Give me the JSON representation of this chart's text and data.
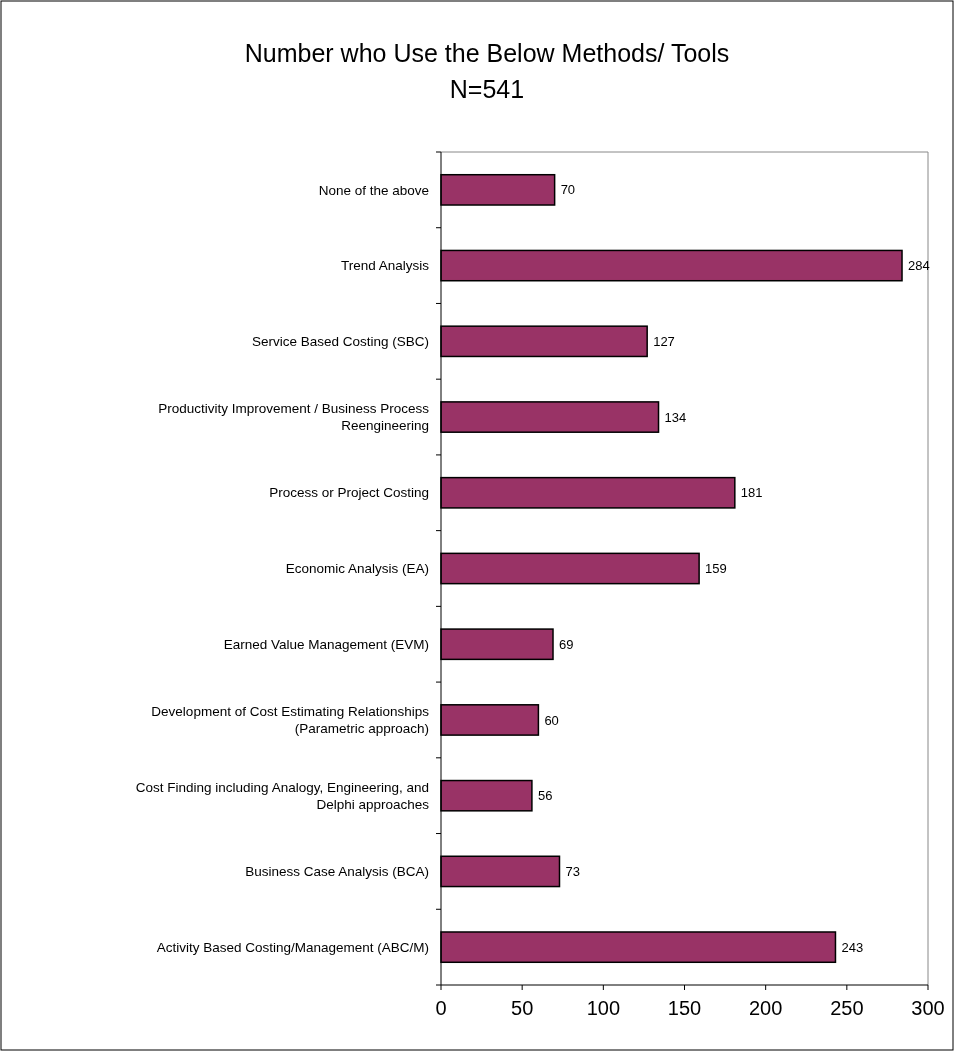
{
  "chart_data": {
    "type": "bar",
    "orientation": "horizontal",
    "title": "Number who Use the Below Methods/ Tools",
    "subtitle": "N=541",
    "categories": [
      "None of the above",
      "Trend Analysis",
      "Service Based Costing (SBC)",
      "Productivity Improvement / Business Process Reengineering",
      "Process or Project Costing",
      "Economic Analysis (EA)",
      "Earned Value Management (EVM)",
      "Development of Cost Estimating Relationships (Parametric approach)",
      "Cost Finding including Analogy, Engineering, and Delphi approaches",
      "Business Case Analysis (BCA)",
      "Activity Based Costing/Management (ABC/M)"
    ],
    "values": [
      70,
      284,
      127,
      134,
      181,
      159,
      69,
      60,
      56,
      73,
      243
    ],
    "color": "#993366",
    "xlim": [
      0,
      300
    ],
    "xticks": [
      0,
      50,
      100,
      150,
      200,
      250,
      300
    ],
    "grid": false,
    "data_labels": true
  }
}
